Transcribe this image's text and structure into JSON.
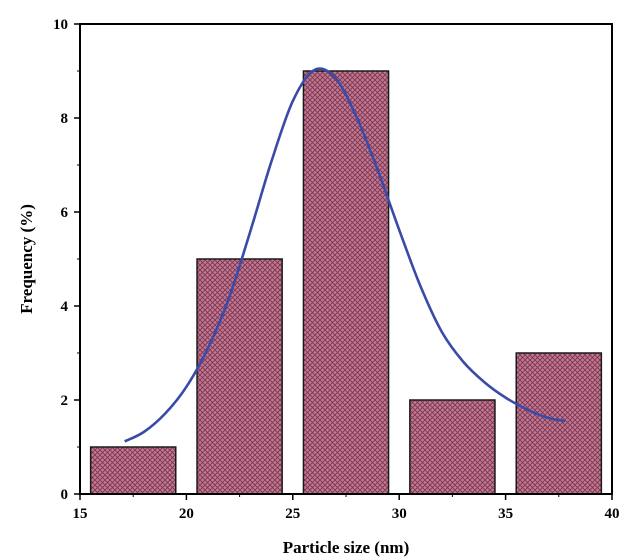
{
  "chart_data": {
    "type": "bar",
    "title": "",
    "xlabel": "Particle size (nm)",
    "ylabel": "Frequency (%)",
    "xlim": [
      15,
      40
    ],
    "ylim": [
      0,
      10
    ],
    "x_ticks": [
      "15",
      "20",
      "25",
      "30",
      "35",
      "40"
    ],
    "y_ticks": [
      "0",
      "2",
      "4",
      "6",
      "8",
      "10"
    ],
    "bars": [
      {
        "x0": 15.5,
        "x1": 19.5,
        "value": 1
      },
      {
        "x0": 20.5,
        "x1": 24.5,
        "value": 5
      },
      {
        "x0": 25.5,
        "x1": 29.5,
        "value": 9
      },
      {
        "x0": 30.5,
        "x1": 34.5,
        "value": 2
      },
      {
        "x0": 35.5,
        "x1": 39.5,
        "value": 3
      }
    ],
    "fit_curve": {
      "type": "gaussian",
      "peak_x": 26.1,
      "peak_y": 9.0,
      "x_range": [
        17.1,
        37.8
      ],
      "points": [
        [
          17.1,
          1.12
        ],
        [
          18,
          1.32
        ],
        [
          19,
          1.71
        ],
        [
          20,
          2.28
        ],
        [
          21,
          3.09
        ],
        [
          22,
          4.17
        ],
        [
          23,
          5.58
        ],
        [
          24,
          7.08
        ],
        [
          25,
          8.36
        ],
        [
          26,
          9.02
        ],
        [
          27,
          8.85
        ],
        [
          28,
          8.02
        ],
        [
          29,
          6.88
        ],
        [
          30,
          5.62
        ],
        [
          31,
          4.42
        ],
        [
          32,
          3.45
        ],
        [
          33,
          2.82
        ],
        [
          34,
          2.38
        ],
        [
          35,
          2.05
        ],
        [
          36,
          1.8
        ],
        [
          37,
          1.62
        ],
        [
          37.8,
          1.55
        ]
      ]
    },
    "colors": {
      "bar_fill": "#c07a92",
      "bar_pattern": "#7d3450",
      "bar_stroke": "#1a1a1a",
      "curve": "#3a4aa8"
    }
  }
}
